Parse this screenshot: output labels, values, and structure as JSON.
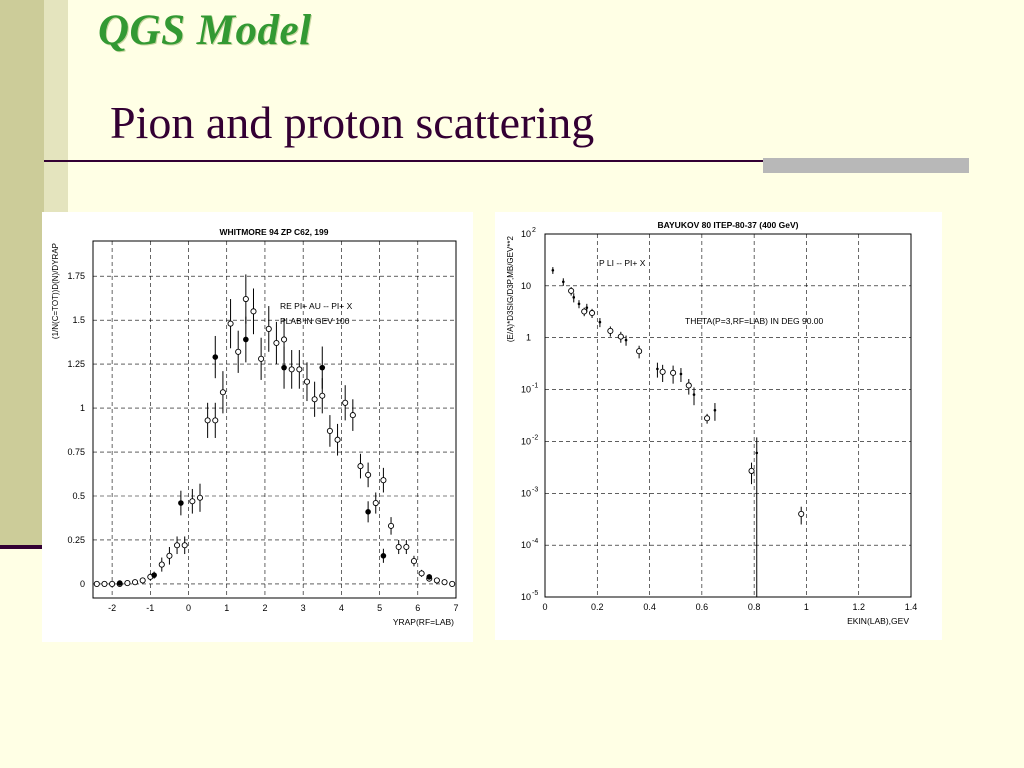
{
  "slide": {
    "heading": "QGS Model",
    "title": "Pion and proton scattering",
    "colors": {
      "background": "#FFFFE5",
      "heading": "#339933",
      "title": "#330033",
      "strip": "#CCCC99",
      "rule": "#330033"
    }
  },
  "chart_data": [
    {
      "type": "scatter",
      "title": "WHITMORE 94   ZP C62, 199",
      "xlabel": "YRAP(RF=LAB)",
      "ylabel": "(1/N(C=TOT))D(N)/DYRAP",
      "xlim": [
        -2.5,
        7
      ],
      "ylim": [
        -0.08,
        1.95
      ],
      "grid": true,
      "xticks": [
        -2,
        -1,
        0,
        1,
        2,
        3,
        4,
        5,
        6,
        7
      ],
      "xtick_labels": [
        "-2",
        "-1",
        "0",
        "1",
        "2",
        "3",
        "4",
        "5",
        "6",
        "7"
      ],
      "yticks": [
        0,
        0.25,
        0.5,
        0.75,
        1,
        1.25,
        1.5,
        1.75
      ],
      "ytick_labels": [
        "0",
        "0.25",
        "0.5",
        "0.75",
        "1",
        "1.25",
        "1.5",
        "1.75"
      ],
      "annotations": [
        "RE   PI+ AU -- PI+ X",
        "PLAB IN GEV   100"
      ],
      "series": [
        {
          "marker": "open-circle",
          "x": [
            -2.4,
            -2.2,
            -2.0,
            -1.8,
            -1.6,
            -1.4,
            -1.2,
            -1.0,
            -0.7,
            -0.5,
            -0.3,
            -0.1,
            0.1,
            0.3,
            0.5,
            0.7,
            0.9,
            1.1,
            1.3,
            1.5,
            1.7,
            1.9,
            2.1,
            2.3,
            2.5,
            2.7,
            2.9,
            3.1,
            3.3,
            3.5,
            3.7,
            3.9,
            4.1,
            4.3,
            4.5,
            4.7,
            4.9,
            5.1,
            5.3,
            5.5,
            5.7,
            5.9,
            6.1,
            6.3,
            6.5,
            6.7,
            6.9
          ],
          "y": [
            0.0,
            0.0,
            0.0,
            0.0,
            0.005,
            0.01,
            0.02,
            0.04,
            0.11,
            0.16,
            0.22,
            0.22,
            0.47,
            0.49,
            0.93,
            0.93,
            1.09,
            1.48,
            1.32,
            1.62,
            1.55,
            1.28,
            1.45,
            1.37,
            1.39,
            1.22,
            1.22,
            1.15,
            1.05,
            1.07,
            0.87,
            0.82,
            1.03,
            0.96,
            0.67,
            0.62,
            0.46,
            0.59,
            0.33,
            0.21,
            0.21,
            0.13,
            0.06,
            0.03,
            0.02,
            0.01,
            0.0
          ],
          "err": [
            0.005,
            0.005,
            0.005,
            0.005,
            0.008,
            0.01,
            0.015,
            0.02,
            0.04,
            0.05,
            0.05,
            0.05,
            0.07,
            0.08,
            0.1,
            0.1,
            0.12,
            0.14,
            0.12,
            0.14,
            0.13,
            0.12,
            0.13,
            0.12,
            0.12,
            0.11,
            0.11,
            0.11,
            0.1,
            0.1,
            0.09,
            0.09,
            0.1,
            0.09,
            0.07,
            0.07,
            0.06,
            0.07,
            0.05,
            0.04,
            0.04,
            0.03,
            0.02,
            0.015,
            0.01,
            0.01,
            0.005
          ]
        },
        {
          "marker": "filled-circle",
          "x": [
            -1.8,
            -0.9,
            -0.2,
            0.7,
            1.5,
            2.5,
            3.5,
            4.7,
            5.1,
            6.3
          ],
          "y": [
            0.005,
            0.05,
            0.46,
            1.29,
            1.39,
            1.23,
            1.23,
            0.41,
            0.16,
            0.04
          ],
          "err": [
            0.008,
            0.02,
            0.07,
            0.12,
            0.13,
            0.12,
            0.12,
            0.06,
            0.04,
            0.015
          ]
        }
      ]
    },
    {
      "type": "scatter",
      "title": "BAYUKOV 80   ITEP-80-37 (400 GeV)",
      "xlabel": "EKIN(LAB),GEV",
      "ylabel": "(E/A)*D3SIG/D3P,MB/GEV**2",
      "xscale": "linear",
      "yscale": "log",
      "xlim": [
        0,
        1.4
      ],
      "ylim": [
        1e-05,
        100
      ],
      "grid": true,
      "xticks": [
        0,
        0.2,
        0.4,
        0.6,
        0.8,
        1,
        1.2,
        1.4
      ],
      "xtick_labels": [
        "0",
        "0.2",
        "0.4",
        "0.6",
        "0.8",
        "1",
        "1.2",
        "1.4"
      ],
      "yticks": [
        1e-05,
        0.0001,
        0.001,
        0.01,
        0.1,
        1,
        10,
        100
      ],
      "ytick_labels": [
        {
          "base": "10",
          "exp": "-5"
        },
        {
          "base": "10",
          "exp": "-4"
        },
        {
          "base": "10",
          "exp": "-3"
        },
        {
          "base": "10",
          "exp": "-2"
        },
        {
          "base": "10",
          "exp": "-1"
        },
        {
          "base": "1",
          "exp": ""
        },
        {
          "base": "10",
          "exp": ""
        },
        {
          "base": "10",
          "exp": "2"
        }
      ],
      "annotations": [
        "P LI -- PI+ X",
        "THETA(P=3,RF=LAB) IN DEG   90.00"
      ],
      "series": [
        {
          "marker": "open-circle",
          "x": [
            0.1,
            0.15,
            0.18,
            0.25,
            0.29,
            0.36,
            0.45,
            0.49,
            0.55,
            0.62,
            0.79,
            0.98
          ],
          "y": [
            8,
            3.2,
            3.0,
            1.35,
            1.05,
            0.55,
            0.22,
            0.21,
            0.12,
            0.028,
            0.0027,
            0.0004
          ],
          "err": [
            1.5,
            0.6,
            0.6,
            0.3,
            0.25,
            0.15,
            0.08,
            0.08,
            0.04,
            0.006,
            0.0012,
            0.00015
          ]
        },
        {
          "marker": "dot",
          "x": [
            0.03,
            0.07,
            0.11,
            0.13,
            0.16,
            0.21,
            0.31,
            0.43,
            0.52,
            0.57,
            0.65,
            0.81
          ],
          "y": [
            20,
            12,
            6,
            4.5,
            3.8,
            2.0,
            0.9,
            0.25,
            0.2,
            0.08,
            0.04,
            0.006
          ],
          "err": [
            3,
            2,
            1.2,
            0.8,
            0.7,
            0.4,
            0.2,
            0.08,
            0.06,
            0.03,
            0.015,
            0.006
          ]
        }
      ]
    }
  ]
}
